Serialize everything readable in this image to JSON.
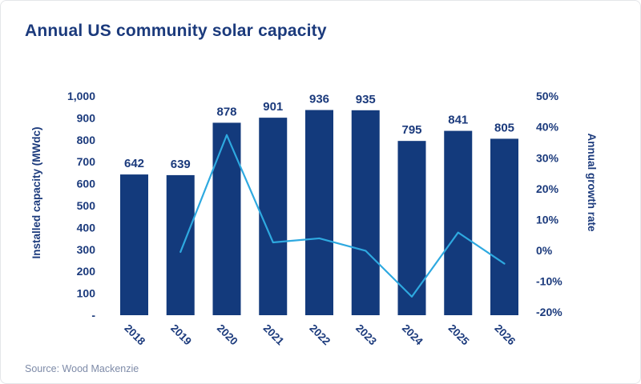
{
  "title": "Annual US community solar capacity",
  "source": "Source: Wood Mackenzie",
  "colors": {
    "title_text": "#1b3a7c",
    "bar": "#133a7c",
    "line": "#2ea9e0",
    "axis_text": "#1b3a7c",
    "source_text": "#7e8ba8",
    "background": "#ffffff",
    "border": "#e4e6e9"
  },
  "chart_data": {
    "type": "bar",
    "title": "Annual US community solar capacity",
    "categories": [
      "2018",
      "2019",
      "2020",
      "2021",
      "2022",
      "2023",
      "2024",
      "2025",
      "2026"
    ],
    "series": [
      {
        "name": "Installed capacity (MWdc)",
        "type": "bar",
        "axis": "left",
        "values": [
          642,
          639,
          878,
          901,
          936,
          935,
          795,
          841,
          805
        ],
        "data_labels": [
          "642",
          "639",
          "878",
          "901",
          "936",
          "935",
          "795",
          "841",
          "805"
        ]
      },
      {
        "name": "Annual growth rate",
        "type": "line",
        "axis": "right",
        "values": [
          null,
          -0.5,
          37.4,
          2.6,
          3.9,
          -0.1,
          -15.0,
          5.8,
          -4.3
        ]
      }
    ],
    "left_axis": {
      "label": "Installed capacity (MWdc)",
      "min": 0,
      "max": 1000,
      "tick_values": [
        0,
        100,
        200,
        300,
        400,
        500,
        600,
        700,
        800,
        900,
        1000
      ],
      "tick_labels": [
        "-",
        "100",
        "200",
        "300",
        "400",
        "500",
        "600",
        "700",
        "800",
        "900",
        "1,000"
      ]
    },
    "right_axis": {
      "label": "Annual growth rate",
      "min": -20,
      "max": 50,
      "tick_values": [
        -20,
        -10,
        0,
        10,
        20,
        30,
        40,
        50
      ],
      "tick_labels": [
        "-20%",
        "-10%",
        "0%",
        "10%",
        "20%",
        "30%",
        "40%",
        "50%"
      ]
    },
    "grid": false,
    "legend": false,
    "x_tick_rotation": 45
  }
}
